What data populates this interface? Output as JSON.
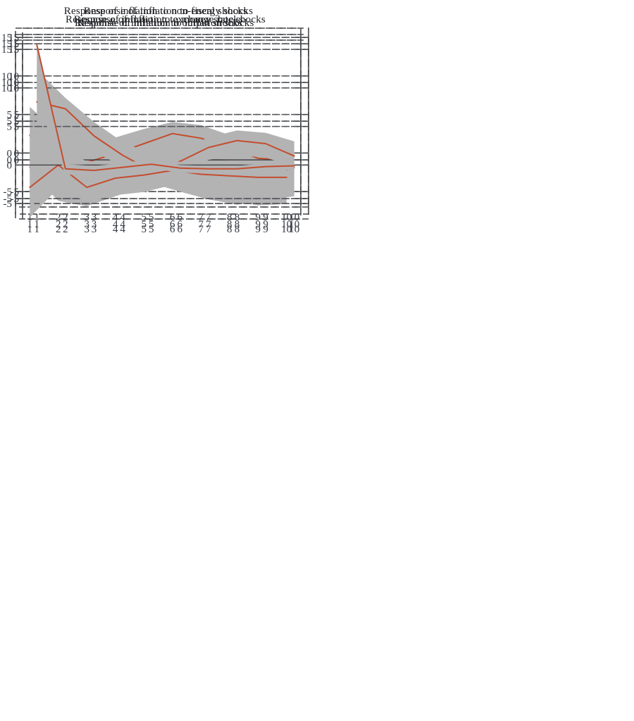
{
  "style": {
    "band_color": "#b3b3b4",
    "line_color": "#c44d2e",
    "grid_color": "#55575b",
    "frame_color": "#47494c",
    "zero_line_color": "#3a3b3d",
    "tick_text_color": "#32363e",
    "title_text_color": "#1e1f23",
    "background": "#ffffff"
  },
  "chart_data": [
    {
      "type": "area",
      "title": "Response of inflation to non-energy shocks",
      "x": [
        1,
        2,
        3,
        4,
        5,
        6,
        7,
        8,
        9,
        10
      ],
      "x_ticks": [
        "1",
        "2",
        "3",
        "4",
        "5",
        "6",
        "7",
        "8",
        "9",
        "10"
      ],
      "y_ticks": [
        [
          15,
          "15"
        ],
        [
          10,
          "10"
        ],
        [
          5,
          "5"
        ],
        [
          0,
          "0"
        ],
        [
          -5,
          "-5"
        ]
      ],
      "xlim": [
        0.5,
        10.5
      ],
      "ylim": [
        -7.0,
        16.2
      ],
      "grid": "dashed",
      "legend": "none",
      "series": [
        {
          "name": "mean",
          "values": [
            2.3,
            -2.3,
            -3.0,
            -2.2,
            -1.7,
            -0.8,
            -1.1,
            -2.5,
            -3.3,
            -2.9
          ]
        },
        {
          "name": "upper_band",
          "values": [
            6.0,
            2.6,
            1.9,
            1.0,
            1.3,
            1.4,
            1.3,
            0.4,
            -0.6,
            -0.5
          ]
        },
        {
          "name": "lower_band",
          "values": [
            -2.5,
            -6.2,
            -6.9,
            -5.6,
            -4.4,
            -3.9,
            -4.8,
            -6.1,
            -6.8,
            -6.6
          ]
        }
      ]
    },
    {
      "type": "area",
      "title": "Response of inflation to fiscal shocks",
      "x": [
        1,
        2,
        3,
        4,
        5,
        6,
        7,
        8,
        9,
        10
      ],
      "x_ticks": [
        "1",
        "2",
        "3",
        "4",
        "5",
        "6",
        "7",
        "8",
        "9",
        "10"
      ],
      "y_ticks": [
        [
          15,
          "15"
        ],
        [
          10,
          "10"
        ],
        [
          5,
          "5"
        ],
        [
          0,
          "0"
        ],
        [
          -5,
          "-5"
        ]
      ],
      "xlim": [
        0.5,
        10.5
      ],
      "ylim": [
        -7.0,
        16.2
      ],
      "grid": "dashed",
      "legend": "none",
      "series": [
        {
          "name": "mean",
          "values": [
            0.5,
            -1.5,
            -1.5,
            -1.2,
            -1.3,
            -2.6,
            -3.5,
            -3.7,
            -2.9,
            -1.9
          ]
        },
        {
          "name": "upper_band",
          "values": [
            4.9,
            2.3,
            1.8,
            1.5,
            1.0,
            0.1,
            -0.8,
            -1.2,
            -0.5,
            0.2
          ]
        },
        {
          "name": "lower_band",
          "values": [
            -4.0,
            -5.8,
            -5.0,
            -3.8,
            -3.9,
            -5.0,
            -6.0,
            -6.7,
            -6.1,
            -5.6
          ]
        }
      ]
    },
    {
      "type": "area",
      "title": "Response of inflation to money shocks",
      "x": [
        1,
        2,
        3,
        4,
        5,
        6,
        7,
        8,
        9,
        10
      ],
      "x_ticks": [
        "1",
        "2",
        "3",
        "4",
        "5",
        "6",
        "7",
        "8",
        "9",
        "10"
      ],
      "y_ticks": [
        [
          15,
          "15"
        ],
        [
          10,
          "10"
        ],
        [
          5,
          "5"
        ],
        [
          0,
          "0"
        ],
        [
          -5,
          "-5"
        ]
      ],
      "xlim": [
        0.5,
        10.5
      ],
      "ylim": [
        -7.0,
        16.2
      ],
      "grid": "dashed",
      "legend": "none",
      "series": [
        {
          "name": "mean",
          "values": [
            -0.9,
            0.5,
            -0.3,
            0.8,
            2.1,
            3.4,
            2.8,
            1.6,
            0.2,
            0.0
          ]
        },
        {
          "name": "upper_band",
          "values": [
            3.5,
            3.3,
            2.2,
            2.9,
            4.0,
            4.9,
            4.5,
            3.2,
            2.2,
            2.1
          ]
        },
        {
          "name": "lower_band",
          "values": [
            -5.9,
            -2.4,
            -2.1,
            -1.2,
            0.0,
            1.4,
            0.9,
            -0.2,
            -1.1,
            -1.3
          ]
        }
      ]
    },
    {
      "type": "area",
      "title": "Response of inflation to exchange rate shocks",
      "x": [
        1,
        2,
        3,
        4,
        5,
        6,
        7,
        8,
        9,
        10
      ],
      "x_ticks": [
        "1",
        "2",
        "3",
        "4",
        "5",
        "6",
        "7",
        "8",
        "9",
        "10"
      ],
      "y_ticks": [
        [
          15,
          "15"
        ],
        [
          10,
          "10"
        ],
        [
          5,
          "5"
        ],
        [
          0,
          "0"
        ],
        [
          -5,
          "-5"
        ]
      ],
      "xlim": [
        0.5,
        10.5
      ],
      "ylim": [
        -7.0,
        16.2
      ],
      "grid": "dashed",
      "legend": "none",
      "series": [
        {
          "name": "mean",
          "values": [
            7.5,
            6.6,
            3.1,
            0.6,
            -1.4,
            -0.2,
            1.6,
            2.5,
            2.1,
            0.5
          ]
        },
        {
          "name": "upper_band",
          "values": [
            11.6,
            8.0,
            4.9,
            2.3,
            0.8,
            1.4,
            2.9,
            3.8,
            3.5,
            2.4
          ]
        },
        {
          "name": "lower_band",
          "values": [
            1.4,
            3.1,
            1.1,
            -0.9,
            -2.6,
            -1.8,
            0.0,
            0.6,
            0.3,
            -0.9
          ]
        }
      ]
    },
    {
      "type": "area",
      "title": "Response of inflation to output shocks",
      "x": [
        1,
        2,
        3,
        4,
        5,
        6,
        7,
        8,
        9,
        10
      ],
      "x_ticks": [
        "1",
        "2",
        "3",
        "4",
        "5",
        "6",
        "7",
        "8",
        "9",
        "10"
      ],
      "y_ticks": [
        [
          15,
          "15"
        ],
        [
          10,
          "10"
        ],
        [
          5,
          "5"
        ],
        [
          0,
          "0"
        ],
        [
          -5,
          "-5"
        ]
      ],
      "xlim": [
        0.5,
        10.5
      ],
      "ylim": [
        -7.0,
        16.2
      ],
      "grid": "dashed",
      "legend": "none",
      "series": [
        {
          "name": "mean",
          "values": [
            -2.9,
            0.0,
            -2.9,
            -1.7,
            -1.3,
            -0.7,
            -1.2,
            -1.4,
            -1.6,
            -1.6
          ]
        },
        {
          "name": "upper_band",
          "values": [
            1.7,
            2.1,
            0.5,
            0.4,
            0.5,
            0.5,
            0.2,
            0.2,
            0.1,
            0.3
          ]
        },
        {
          "name": "lower_band",
          "values": [
            -6.8,
            -3.0,
            -4.8,
            -3.9,
            -3.5,
            -2.6,
            -3.0,
            -3.2,
            -3.5,
            -3.7
          ]
        }
      ]
    },
    {
      "type": "area",
      "title": "Response of inflation to inflation shocks",
      "x": [
        1,
        2,
        3,
        4,
        5,
        6,
        7,
        8,
        9,
        10
      ],
      "x_ticks": [
        "1",
        "2",
        "3",
        "4",
        "5",
        "6",
        "7",
        "8",
        "9",
        "10"
      ],
      "y_ticks": [
        [
          15,
          "15"
        ],
        [
          10,
          "10"
        ],
        [
          5,
          "5"
        ],
        [
          0,
          ""
        ],
        [
          -5,
          ""
        ]
      ],
      "xlim": [
        0.5,
        10.5
      ],
      "ylim": [
        -7.0,
        16.2
      ],
      "grid": "dashed",
      "legend": "none",
      "series": [
        {
          "name": "mean",
          "values": [
            15.6,
            -0.5,
            -0.7,
            -0.3,
            0.1,
            -0.4,
            -0.5,
            -0.5,
            -0.2,
            -0.1
          ]
        },
        {
          "name": "upper_band",
          "values": [
            15.8,
            0.1,
            -0.1,
            0.2,
            0.6,
            0.0,
            -0.1,
            -0.1,
            0.2,
            0.3
          ]
        },
        {
          "name": "lower_band",
          "values": [
            8.4,
            -1.2,
            -1.5,
            -0.9,
            -0.4,
            -1.0,
            -1.1,
            -1.2,
            -0.8,
            -0.6
          ]
        }
      ]
    }
  ]
}
